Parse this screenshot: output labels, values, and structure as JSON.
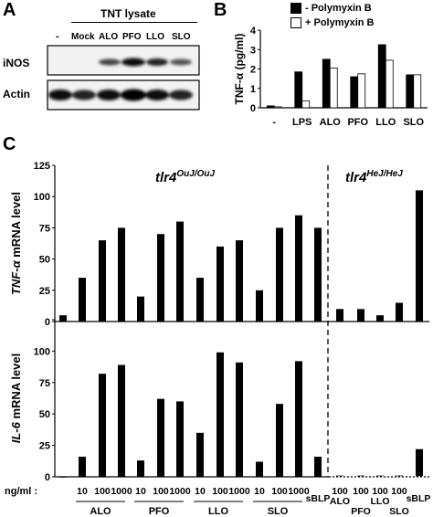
{
  "panels": {
    "A": {
      "letter": "A",
      "header": "TNT lysate",
      "lanes": [
        "-",
        "Mock",
        "ALO",
        "PFO",
        "LLO",
        "SLO"
      ],
      "rows": [
        "iNOS",
        "Actin"
      ]
    },
    "B": {
      "letter": "B",
      "ylabel": "TNF-α (pg/ml)",
      "legend": [
        "- Polymyxin B",
        "+ Polymyxin B"
      ],
      "chart_data": {
        "type": "bar",
        "categories": [
          "-",
          "LPS",
          "ALO",
          "PFO",
          "LLO",
          "SLO"
        ],
        "series": [
          {
            "name": "- Polymyxin B",
            "color": "#000000",
            "values": [
              0.1,
              1.85,
              2.5,
              1.6,
              3.25,
              1.7
            ]
          },
          {
            "name": "+ Polymyxin B",
            "color": "#ffffff",
            "values": [
              0.05,
              0.35,
              2.05,
              1.75,
              2.45,
              1.7
            ]
          }
        ],
        "ylim": [
          0,
          4
        ],
        "yticks": [
          "0",
          "1",
          "2",
          "3",
          "4"
        ]
      }
    },
    "C": {
      "letter": "C",
      "genotype_left": "tlr4",
      "genotype_left_sup": "OuJ/OuJ",
      "genotype_right": "tlr4",
      "genotype_right_sup": "HeJ/HeJ",
      "xprefix": "ng/ml :",
      "doses_left": [
        "10",
        "100",
        "1000",
        "10",
        "100",
        "1000",
        "10",
        "100",
        "1000",
        "10",
        "100",
        "1000"
      ],
      "groups_left": [
        "ALO",
        "PFO",
        "LLO",
        "SLO"
      ],
      "sblp_label": "sBLP",
      "doses_right": [
        "100",
        "100",
        "100",
        "100"
      ],
      "groups_right": [
        "ALO",
        "PFO",
        "LLO",
        "SLO"
      ],
      "sblp_label_right": "sBLP",
      "chart_data": [
        {
          "type": "bar",
          "ylabel_gene": "TNF-α",
          "ylabel_rest": " mRNA level",
          "ylim": [
            0,
            125
          ],
          "yticks": [
            "0",
            "25",
            "50",
            "75",
            "100",
            "125"
          ],
          "values": [
            5,
            35,
            65,
            75,
            20,
            70,
            80,
            35,
            60,
            65,
            25,
            75,
            85,
            75,
            10,
            10,
            5,
            15,
            105
          ]
        },
        {
          "type": "bar",
          "ylabel_gene": "IL-6",
          "ylabel_rest": " mRNA level",
          "ylim": [
            0,
            125
          ],
          "yticks": [
            "0",
            "25",
            "50",
            "75",
            "100",
            "125"
          ],
          "values": [
            0,
            16,
            82,
            89,
            13,
            62,
            60,
            35,
            99,
            91,
            12,
            58,
            92,
            16,
            1,
            1,
            1,
            1,
            22
          ]
        }
      ]
    }
  }
}
